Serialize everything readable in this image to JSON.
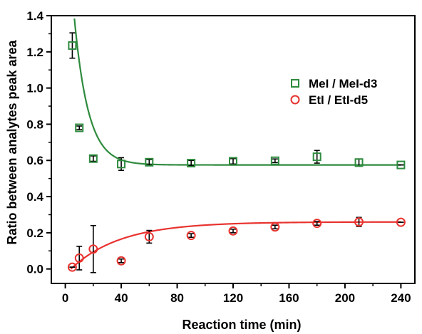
{
  "chart_data": {
    "type": "scatter",
    "title": "",
    "xlabel": "Reaction time (min)",
    "ylabel": "Ratio between analytes peak area",
    "xlim": [
      -10,
      250
    ],
    "ylim": [
      -0.08,
      1.4
    ],
    "xticks": [
      0,
      40,
      80,
      120,
      160,
      200,
      240
    ],
    "yticks": [
      0.0,
      0.2,
      0.4,
      0.6,
      0.8,
      1.0,
      1.2,
      1.4
    ],
    "xtick_labels": [
      "0",
      "40",
      "80",
      "120",
      "160",
      "200",
      "240"
    ],
    "ytick_labels": [
      "0.0",
      "0.2",
      "0.4",
      "0.6",
      "0.8",
      "1.0",
      "1.2",
      "1.4"
    ],
    "grid": false,
    "legend_position": "right",
    "series": [
      {
        "name": "MeI / MeI-d3",
        "marker": "square",
        "color": "#2e8b3e",
        "points": [
          {
            "x": 5,
            "y": 1.235,
            "err": 0.07
          },
          {
            "x": 10,
            "y": 0.78,
            "err": 0.01
          },
          {
            "x": 20,
            "y": 0.61,
            "err": 0.015
          },
          {
            "x": 40,
            "y": 0.58,
            "err": 0.035
          },
          {
            "x": 60,
            "y": 0.59,
            "err": 0.015
          },
          {
            "x": 90,
            "y": 0.585,
            "err": 0.015
          },
          {
            "x": 120,
            "y": 0.595,
            "err": 0.015
          },
          {
            "x": 150,
            "y": 0.598,
            "err": 0.01
          },
          {
            "x": 180,
            "y": 0.62,
            "err": 0.035
          },
          {
            "x": 210,
            "y": 0.588,
            "err": 0.02
          },
          {
            "x": 240,
            "y": 0.575,
            "err": 0.0
          }
        ],
        "fit": {
          "model": "exp_decay",
          "a": 0.575,
          "b": 1.55,
          "k": 0.1
        }
      },
      {
        "name": "EtI / EtI-d5",
        "marker": "circle",
        "color": "#e8332f",
        "points": [
          {
            "x": 5,
            "y": 0.01,
            "err": 0.0
          },
          {
            "x": 10,
            "y": 0.06,
            "err": 0.065
          },
          {
            "x": 20,
            "y": 0.11,
            "err": 0.13
          },
          {
            "x": 40,
            "y": 0.045,
            "err": 0.01
          },
          {
            "x": 60,
            "y": 0.178,
            "err": 0.035
          },
          {
            "x": 90,
            "y": 0.185,
            "err": 0.01
          },
          {
            "x": 120,
            "y": 0.21,
            "err": 0.01
          },
          {
            "x": 150,
            "y": 0.232,
            "err": 0.01
          },
          {
            "x": 180,
            "y": 0.252,
            "err": 0.01
          },
          {
            "x": 210,
            "y": 0.26,
            "err": 0.025
          },
          {
            "x": 240,
            "y": 0.258,
            "err": 0.0
          }
        ],
        "fit": {
          "model": "exp_rise",
          "a": 0.26,
          "x0": 4,
          "k": 0.028
        }
      }
    ]
  }
}
